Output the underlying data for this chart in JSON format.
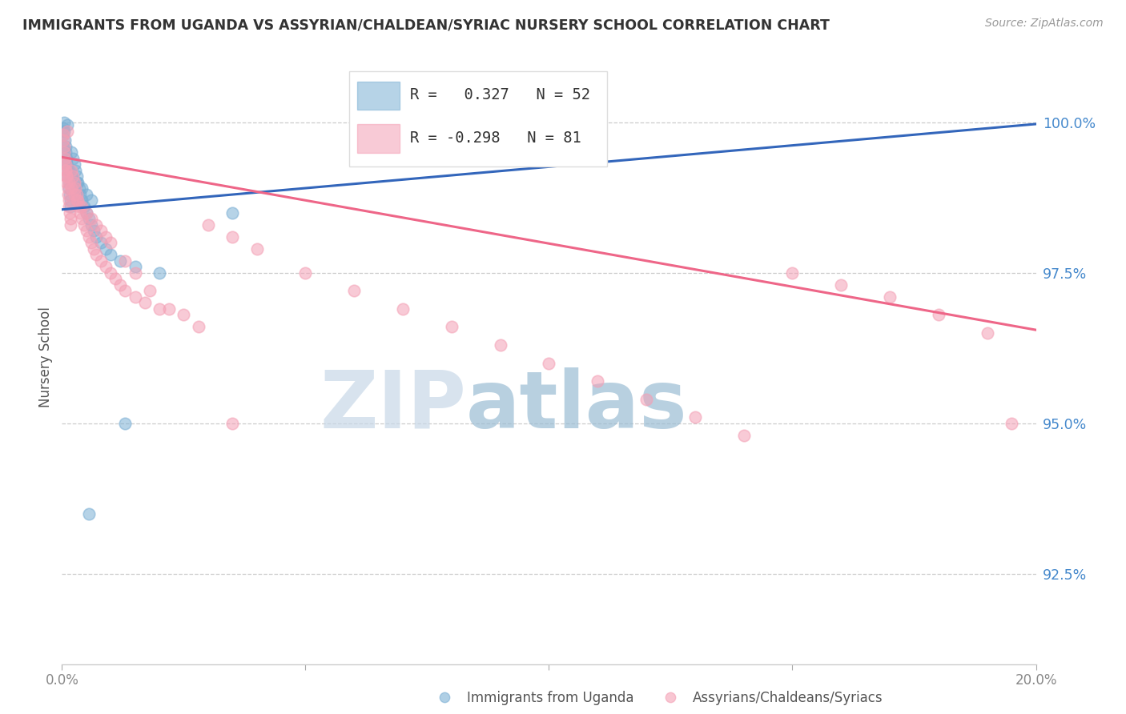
{
  "title": "IMMIGRANTS FROM UGANDA VS ASSYRIAN/CHALDEAN/SYRIAC NURSERY SCHOOL CORRELATION CHART",
  "source": "Source: ZipAtlas.com",
  "ylabel": "Nursery School",
  "yticks": [
    100.0,
    97.5,
    95.0,
    92.5
  ],
  "ytick_labels": [
    "100.0%",
    "97.5%",
    "95.0%",
    "92.5%"
  ],
  "xlim": [
    0.0,
    20.0
  ],
  "ylim": [
    91.0,
    101.2
  ],
  "blue_R": 0.327,
  "blue_N": 52,
  "pink_R": -0.298,
  "pink_N": 81,
  "blue_color": "#7BAFD4",
  "pink_color": "#F4A0B5",
  "trendline_blue": "#3366BB",
  "trendline_pink": "#EE6688",
  "watermark_zip": "ZIP",
  "watermark_atlas": "atlas",
  "watermark_color_zip": "#C8D8E8",
  "watermark_color_atlas": "#9BBDD4",
  "legend_blue": "Immigrants from Uganda",
  "legend_pink": "Assyrians/Chaldeans/Syriacs",
  "blue_trendline_x": [
    0.0,
    20.0
  ],
  "blue_trendline_y": [
    98.55,
    99.97
  ],
  "pink_trendline_x": [
    0.0,
    20.0
  ],
  "pink_trendline_y": [
    99.42,
    96.55
  ],
  "blue_x": [
    0.02,
    0.03,
    0.04,
    0.05,
    0.06,
    0.07,
    0.08,
    0.09,
    0.1,
    0.11,
    0.12,
    0.13,
    0.14,
    0.15,
    0.16,
    0.17,
    0.18,
    0.2,
    0.22,
    0.25,
    0.28,
    0.3,
    0.32,
    0.35,
    0.38,
    0.4,
    0.45,
    0.5,
    0.55,
    0.6,
    0.65,
    0.7,
    0.8,
    0.9,
    1.0,
    1.2,
    1.5,
    2.0,
    0.03,
    0.05,
    0.07,
    0.1,
    0.15,
    0.2,
    0.3,
    0.4,
    0.5,
    0.6,
    7.5,
    3.5,
    1.3,
    0.55
  ],
  "blue_y": [
    99.8,
    99.9,
    100.0,
    99.85,
    99.7,
    99.6,
    99.5,
    99.4,
    99.3,
    99.95,
    99.2,
    99.1,
    99.0,
    98.9,
    98.8,
    98.7,
    98.6,
    99.5,
    99.4,
    99.3,
    99.2,
    99.1,
    99.0,
    98.9,
    98.8,
    98.7,
    98.6,
    98.5,
    98.4,
    98.3,
    98.2,
    98.1,
    98.0,
    97.9,
    97.8,
    97.7,
    97.6,
    97.5,
    99.6,
    99.5,
    99.4,
    99.3,
    99.2,
    99.1,
    99.0,
    98.9,
    98.8,
    98.7,
    99.5,
    98.5,
    95.0,
    93.5
  ],
  "pink_x": [
    0.02,
    0.03,
    0.04,
    0.05,
    0.06,
    0.07,
    0.08,
    0.09,
    0.1,
    0.11,
    0.12,
    0.13,
    0.14,
    0.15,
    0.16,
    0.17,
    0.18,
    0.2,
    0.22,
    0.25,
    0.28,
    0.3,
    0.32,
    0.35,
    0.38,
    0.4,
    0.45,
    0.5,
    0.55,
    0.6,
    0.65,
    0.7,
    0.8,
    0.9,
    1.0,
    1.1,
    1.2,
    1.3,
    1.5,
    1.7,
    2.0,
    2.5,
    3.0,
    3.5,
    4.0,
    5.0,
    6.0,
    7.0,
    8.0,
    9.0,
    10.0,
    11.0,
    12.0,
    13.0,
    14.0,
    15.0,
    16.0,
    17.0,
    18.0,
    19.0,
    0.05,
    0.08,
    0.1,
    0.15,
    0.2,
    0.25,
    0.3,
    0.4,
    0.5,
    0.6,
    0.7,
    0.8,
    0.9,
    1.0,
    1.3,
    1.5,
    1.8,
    2.2,
    2.8,
    3.5,
    19.5
  ],
  "pink_y": [
    99.7,
    99.8,
    99.6,
    99.5,
    99.4,
    99.3,
    99.2,
    99.1,
    99.0,
    99.85,
    98.9,
    98.8,
    98.7,
    98.6,
    98.5,
    98.4,
    98.3,
    99.2,
    99.1,
    99.0,
    98.9,
    98.8,
    98.7,
    98.6,
    98.5,
    98.4,
    98.3,
    98.2,
    98.1,
    98.0,
    97.9,
    97.8,
    97.7,
    97.6,
    97.5,
    97.4,
    97.3,
    97.2,
    97.1,
    97.0,
    96.9,
    96.8,
    98.3,
    98.1,
    97.9,
    97.5,
    97.2,
    96.9,
    96.6,
    96.3,
    96.0,
    95.7,
    95.4,
    95.1,
    94.8,
    97.5,
    97.3,
    97.1,
    96.8,
    96.5,
    99.3,
    99.2,
    99.1,
    99.0,
    98.9,
    98.8,
    98.7,
    98.6,
    98.5,
    98.4,
    98.3,
    98.2,
    98.1,
    98.0,
    97.7,
    97.5,
    97.2,
    96.9,
    96.6,
    95.0,
    95.0
  ]
}
